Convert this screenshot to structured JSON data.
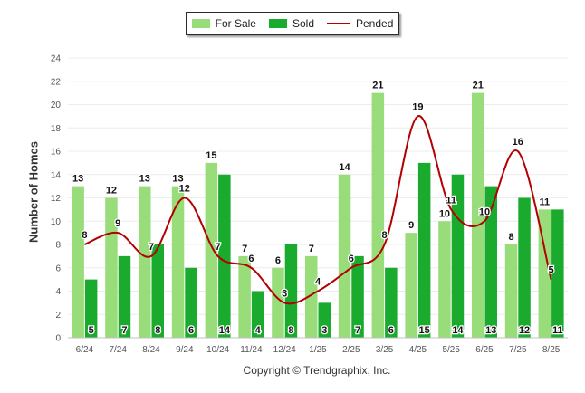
{
  "colors": {
    "for_sale": "#99dd7a",
    "sold": "#1aab2e",
    "pended": "#b30000",
    "grid": "#ececec",
    "axis": "#c0c0c0",
    "tick_text": "#555555"
  },
  "footer": {
    "copyright": "Copyright © Trendgraphix, Inc."
  },
  "chart_data": {
    "type": "bar",
    "title": "",
    "xlabel": "",
    "ylabel": "Number of Homes",
    "ylim": [
      0,
      24
    ],
    "yticks": [
      0,
      2,
      4,
      6,
      8,
      10,
      12,
      14,
      16,
      18,
      20,
      22,
      24
    ],
    "grid": true,
    "legend_position": "top-center",
    "categories": [
      "6/24",
      "7/24",
      "8/24",
      "9/24",
      "10/24",
      "11/24",
      "12/24",
      "1/25",
      "2/25",
      "3/25",
      "4/25",
      "5/25",
      "6/25",
      "7/25",
      "8/25"
    ],
    "series": [
      {
        "name": "For Sale",
        "type": "bar",
        "values": [
          13,
          12,
          13,
          13,
          15,
          7,
          6,
          7,
          14,
          21,
          9,
          10,
          21,
          8,
          11
        ]
      },
      {
        "name": "Sold",
        "type": "bar",
        "values": [
          5,
          7,
          8,
          6,
          14,
          4,
          8,
          3,
          7,
          6,
          15,
          14,
          13,
          12,
          11
        ]
      },
      {
        "name": "Pended",
        "type": "line",
        "smooth": true,
        "values": [
          8,
          9,
          7,
          12,
          7,
          6,
          3,
          4,
          6,
          8,
          19,
          11,
          10,
          16,
          5
        ]
      }
    ]
  }
}
